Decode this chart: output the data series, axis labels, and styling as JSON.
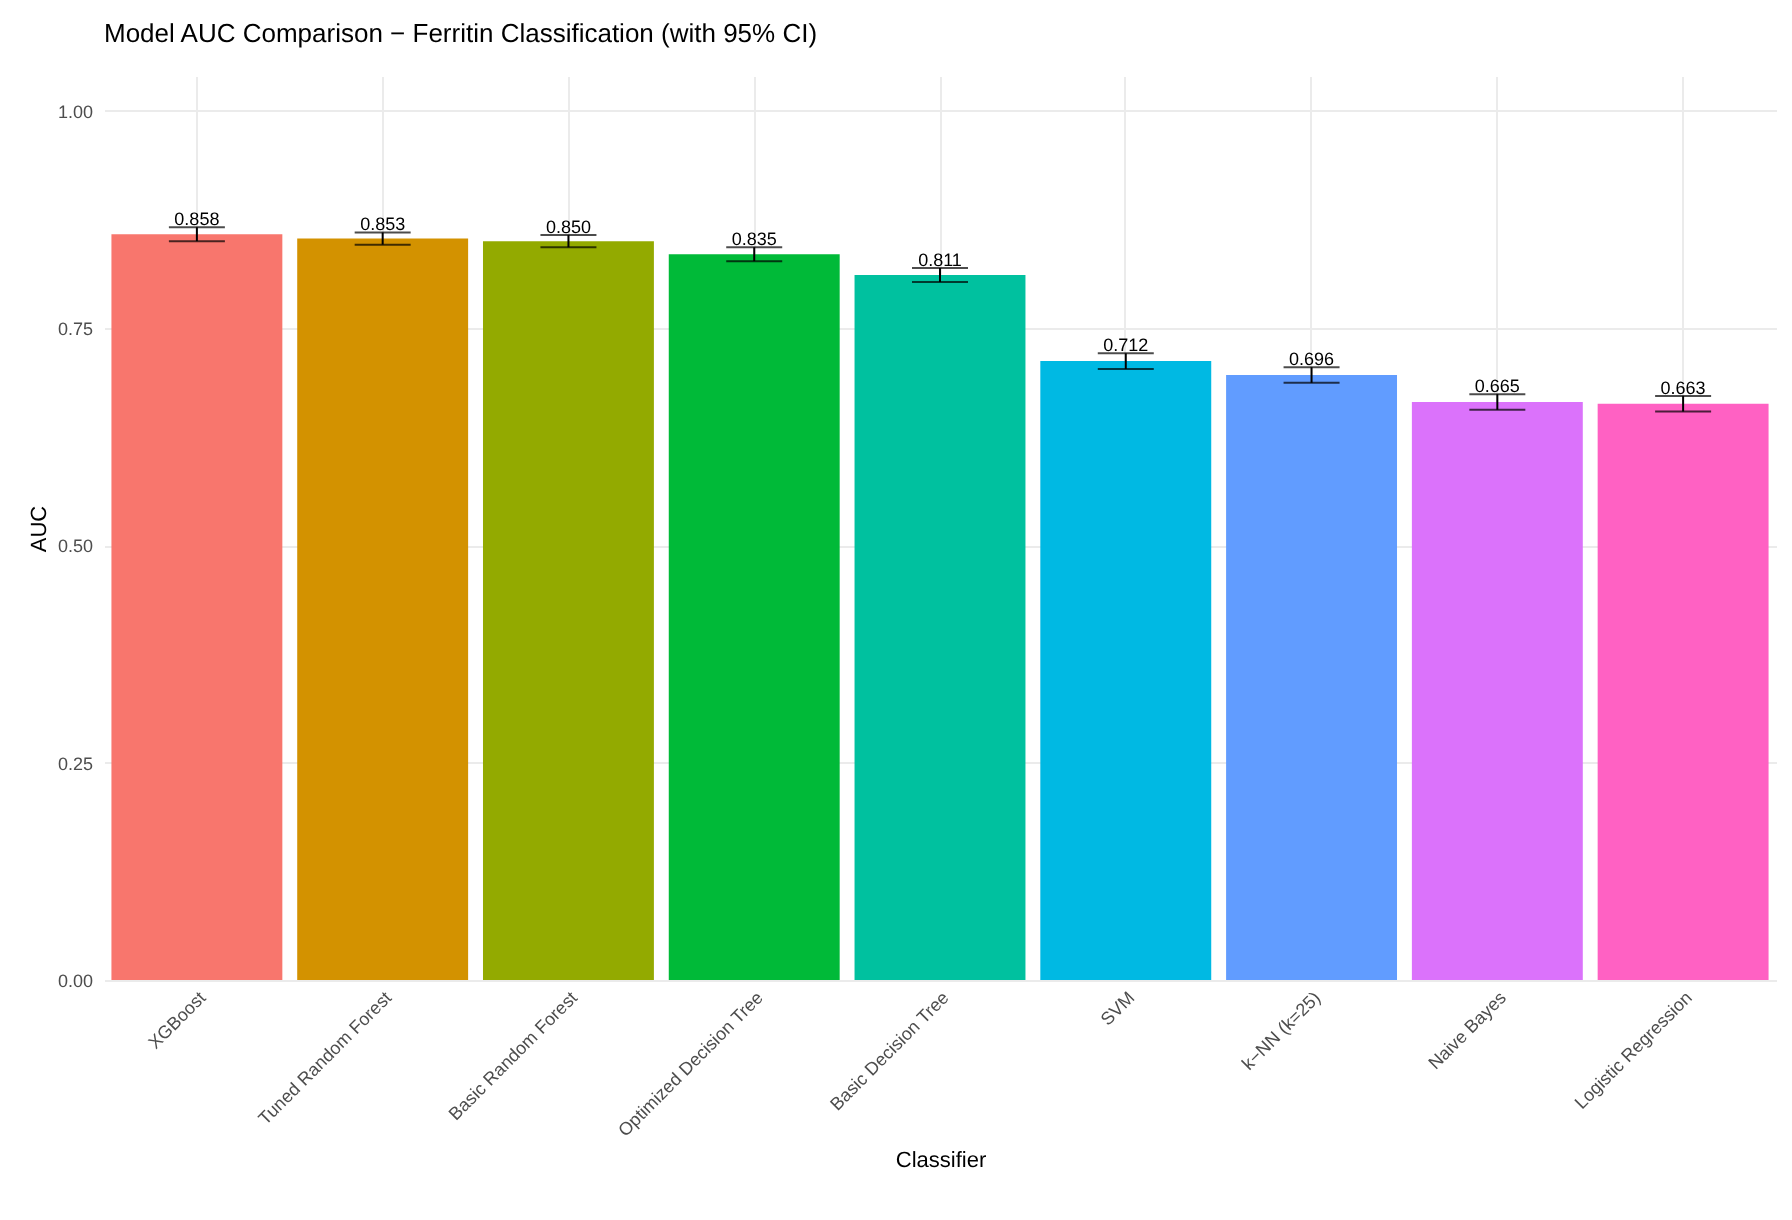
{
  "chart_data": {
    "type": "bar",
    "title": "Model AUC Comparison − Ferritin Classification (with 95% CI)",
    "xlabel": "Classifier",
    "ylabel": "AUC",
    "categories": [
      "XGBoost",
      "Tuned Random Forest",
      "Basic Random Forest",
      "Optimized Decision Tree",
      "Basic Decision Tree",
      "SVM",
      "k−NN (k=25)",
      "Naive Bayes",
      "Logistic Regression"
    ],
    "values": [
      0.858,
      0.853,
      0.85,
      0.835,
      0.811,
      0.712,
      0.696,
      0.665,
      0.663
    ],
    "colors": [
      "#f8766d",
      "#d39200",
      "#93aa00",
      "#00ba38",
      "#00c19f",
      "#00b9e3",
      "#619cff",
      "#db72fb",
      "#ff61c3"
    ],
    "errors": [
      0.008,
      0.007,
      0.007,
      0.008,
      0.008,
      0.009,
      0.009,
      0.009,
      0.009
    ],
    "value_labels": [
      "0.858",
      "0.853",
      "0.850",
      "0.835",
      "0.811",
      "0.712",
      "0.696",
      "0.665",
      "0.663"
    ],
    "ylim": [
      0,
      1.04
    ],
    "yticks": [
      {
        "value": 0,
        "label": "0.00"
      },
      {
        "value": 0.25,
        "label": "0.25"
      },
      {
        "value": 0.5,
        "label": "0.50"
      },
      {
        "value": 0.75,
        "label": "0.75"
      },
      {
        "value": 1,
        "label": "1.00"
      }
    ],
    "grid": true,
    "legend": false
  }
}
